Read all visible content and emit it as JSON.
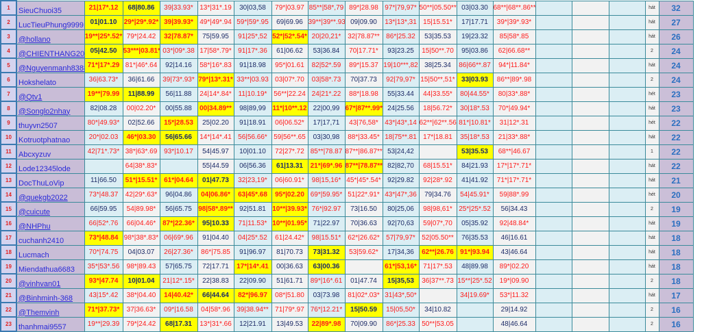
{
  "colors": {
    "highlight": "#ffff00",
    "starred_text": "#ff1a1a",
    "normal_text": "#1c2a66",
    "name_text": "#2a2ad8",
    "score_text": "#2a6fc0"
  },
  "rows": [
    {
      "rank": "1",
      "name": "SieuChuoi35",
      "link": false,
      "cells": [
        "21|17*.12",
        "68|80.86",
        "39|33.93*",
        "13*|31*.19",
        "30|03,58",
        "79*|03.97",
        "85**|58*,79",
        "89*|28.98",
        "97*|79,97*",
        "50**|05.50**",
        "03|03.30",
        "68**|68**.86**"
      ],
      "highlight": [
        0,
        1
      ],
      "status": "hát",
      "score": "32"
    },
    {
      "rank": "2",
      "name": "LucTieuPhung9999",
      "link": false,
      "cells": [
        "01|01.10",
        "29*|29*.92*",
        "39|39.93*",
        "49*|49*.94",
        "59*|59*.95",
        "69|69.96",
        "39**|39**.93",
        "09|09.90",
        "13*|13*,31",
        "15|15.51*",
        "17|17.71",
        "39*|39*.93*"
      ],
      "highlight": [
        0,
        1,
        2
      ],
      "status": "hát",
      "score": "27"
    },
    {
      "rank": "3",
      "name": "@hollano",
      "link": true,
      "cells": [
        "19**|25*.52*",
        "79*|24.42",
        "32|78.87*",
        "75|59.95",
        "91|25*,52",
        "52*|52*.54*",
        "20|20,21*",
        "32|78.87**",
        "86*|25.32",
        "53|35.53",
        "19|23.32",
        "85|58*.85"
      ],
      "highlight": [
        0,
        2,
        5
      ],
      "status": "hát",
      "score": "26"
    },
    {
      "rank": "4",
      "name": "@CHIENTHANG2021",
      "link": true,
      "cells": [
        "05|42.50",
        "53***|03.81*",
        "03*|09*.38",
        "17|58*.79*",
        "91|17*.36",
        "61|06.62",
        "53|36.84",
        "70|17.71*",
        "93|23.25",
        "15|50**.70",
        "95|03.86",
        "62|66.68**"
      ],
      "highlight": [
        0,
        1
      ],
      "status": "2",
      "score": "24"
    },
    {
      "rank": "5",
      "name": "@Nguyenmanh8388",
      "link": true,
      "cells": [
        "71*|17*.29",
        "81*|46*.64",
        "92|14.16",
        "58*|16*.83",
        "91|18.98",
        "95*|01.61",
        "82|52*.59",
        "89*|15.37",
        "19|10***,82",
        "38|25.34",
        "86|66**.87",
        "94*|11.84*"
      ],
      "highlight": [
        0
      ],
      "status": "hát",
      "score": "24"
    },
    {
      "rank": "6",
      "name": "Hokshelato",
      "link": false,
      "cells": [
        "36|63.73*",
        "36|61.66",
        "39|73*.93*",
        "79*|13*.31*",
        "33**|03.93",
        "03|07*.70",
        "03|58*.73",
        "70|37.73",
        "92|79,97*",
        "15|50**,51*",
        "33|03.93",
        "86**|89*.98"
      ],
      "highlight": [
        3,
        10
      ],
      "status": "2",
      "score": "24"
    },
    {
      "rank": "7",
      "name": "@Qtv1",
      "link": true,
      "cells": [
        "19**|79.99",
        "11|88.99",
        "56|11.88",
        "24|14*.84*",
        "11|10.19*",
        "56**|22.24",
        "24|21*.22",
        "88*|18.98",
        "55|33.44",
        "44|33.55*",
        "80|44.55*",
        "80|33*.88*"
      ],
      "highlight": [
        0,
        1
      ],
      "status": "hét",
      "score": "23"
    },
    {
      "rank": "8",
      "name": "@Songlo2nhay",
      "link": true,
      "cells": [
        "82|08.28",
        "00|02.20*",
        "00|55.88",
        "00|34.89**",
        "98|89,99",
        "11*|10**.12",
        "22|00,99",
        "67*|87**.99*",
        "24|25.56",
        "18|56.72*",
        "30|18*.53",
        "70*|49.94*"
      ],
      "highlight": [
        3,
        5,
        7
      ],
      "status": "hát",
      "score": "23"
    },
    {
      "rank": "9",
      "name": "thuyvn2507",
      "link": false,
      "cells": [
        "80*|49.93*",
        "02|52.66",
        "15*|28.53",
        "25|02.20",
        "91|18.91",
        "06|06.52*",
        "17|17,71",
        "43|76,58*",
        "43*|43*,14",
        "62**|62**.56",
        "81*|10.81*",
        "31|12*.31"
      ],
      "highlight": [
        2
      ],
      "status": "hét",
      "score": "22"
    },
    {
      "rank": "10",
      "name": "Kotruotphatnao",
      "link": false,
      "cells": [
        "20*|02.03",
        "46*|03.30",
        "56|65.66",
        "14*|14*.41",
        "56|56.66*",
        "59|56**.65",
        "03|30,98",
        "88*|33.45*",
        "18|75**.81",
        "17*|18.81",
        "35|18*.53",
        "21|33*.88*"
      ],
      "highlight": [
        1,
        2
      ],
      "status": "hát",
      "score": "22"
    },
    {
      "rank": "11",
      "name": "Abcxyzuv",
      "link": false,
      "cells": [
        "42|71*.73*",
        "38*|63*.69",
        "93*|10.17",
        "54|45.97",
        "10|01.10",
        "72|27*.72",
        "85**|78.87",
        "87**|86.87**",
        "53|24,42",
        "",
        "53|35.53",
        "68**|46.67"
      ],
      "highlight": [
        10
      ],
      "status": "1",
      "score": "22"
    },
    {
      "rank": "12",
      "name": "Lode12345lode",
      "link": false,
      "cells": [
        "",
        "64|38*.83*",
        "",
        "55|44.59",
        "06|56.36",
        "61|13.31",
        "21*|69*.96",
        "87**|78.87**",
        "82|82,70",
        "68|15.51*",
        "84|21.93",
        "17*|17*.71*"
      ],
      "highlight": [
        5,
        6,
        7
      ],
      "status": "hát",
      "score": "22"
    },
    {
      "rank": "13",
      "name": "DocThuLoVip",
      "link": false,
      "cells": [
        "11|66.50",
        "51*|15.51*",
        "61*|04.64",
        "01|47.73",
        "32|23,19*",
        "06|60.91*",
        "98|15,16*",
        "45*|45*.54*",
        "92|29.82",
        "92|28*.92",
        "41|41.92",
        "71*|17*.71*"
      ],
      "highlight": [
        1,
        2,
        3
      ],
      "status": "hát",
      "score": "21"
    },
    {
      "rank": "14",
      "name": "@quekgb2022",
      "link": true,
      "cells": [
        "73*|48.37",
        "42|29*.63*",
        "96|04.86",
        "04|06.86*",
        "63|45*.68",
        "95*|02.20",
        "69*|59.95*",
        "51|22*.91*",
        "43*|47*,36",
        "79|34.76",
        "54|45.91*",
        "59|88*.99"
      ],
      "highlight": [
        3,
        4,
        5
      ],
      "status": "hét",
      "score": "20"
    },
    {
      "rank": "15",
      "name": "@cuicute",
      "link": true,
      "cells": [
        "66|59.95",
        "54|89.98*",
        "56|65.75",
        "98|58*.89**",
        "92|51.81",
        "10**|39.93*",
        "76*|92.97",
        "73|16.50",
        "80|25,06",
        "98|98,61*",
        "25*|25*.52",
        "56|34.43"
      ],
      "highlight": [
        3,
        5
      ],
      "status": "2",
      "score": "19"
    },
    {
      "rank": "16",
      "name": "@NHPhu",
      "link": true,
      "cells": [
        "66|52*.76",
        "66|04.46*",
        "87*|22.36*",
        "95|10.33",
        "71|11.53*",
        "10**|01.95*",
        "71|22.97",
        "70|36.63",
        "92|70,63",
        "59|07*,70",
        "05|35.92",
        "92|48.84*"
      ],
      "highlight": [
        2,
        3,
        5
      ],
      "status": "hát",
      "score": "19"
    },
    {
      "rank": "17",
      "name": "cuchanh2410",
      "link": false,
      "cells": [
        "73*|48.84",
        "98*|38*.83*",
        "06|69*.96",
        "91|04.40",
        "04|25*.52",
        "61|24.42*",
        "98|15.51*",
        "62*|26.62*",
        "57|79,97*",
        "52|05.50**",
        "76|35.53",
        "46|16.61"
      ],
      "highlight": [
        0
      ],
      "status": "hát",
      "score": "18"
    },
    {
      "rank": "18",
      "name": "Lucmach",
      "link": false,
      "cells": [
        "70*|74.75",
        "04|03.07",
        "26|27.36*",
        "86*|75.85",
        "91|96.97",
        "81|70.73",
        "73|31.32",
        "53|59.62*",
        "17|34,36",
        "62**|26.76",
        "91*|93.94",
        "43|46.64"
      ],
      "highlight": [
        6,
        9,
        10
      ],
      "status": "hát",
      "score": "18"
    },
    {
      "rank": "19",
      "name": "Miendathua6683",
      "link": false,
      "cells": [
        "35*|53*.56",
        "98*|89.43",
        "57|65.75",
        "72|17.71",
        "17*|14*.41",
        "00|36.63",
        "63|00.36",
        "",
        "61*|53,16*",
        "71|17*.53",
        "48|89.98",
        "89*|02.20"
      ],
      "highlight": [
        4,
        6,
        8
      ],
      "status": "hát",
      "score": "18"
    },
    {
      "rank": "20",
      "name": "@vinhvan01",
      "link": true,
      "cells": [
        "93*|47.74",
        "10|01.04",
        "21|12*.15*",
        "22|38.83",
        "22|09.90",
        "51|61.71",
        "89*|16*.61",
        "01|47.74",
        "15|35,53",
        "36|37**.73",
        "15**|25*.52",
        "19*|09.90"
      ],
      "highlight": [
        0,
        1,
        8
      ],
      "status": "2",
      "score": "18"
    },
    {
      "rank": "21",
      "name": "@Binhminh-368",
      "link": true,
      "cells": [
        "43|15*.42",
        "38*|04.40",
        "14|40.42*",
        "66|44.64",
        "82*|96.97",
        "08*|51.80",
        "03|73.98",
        "81|02*.03*",
        "31|43*,50*",
        "",
        "34|19.69*",
        "53*|11.32"
      ],
      "highlight": [
        2,
        3,
        4
      ],
      "status": "hát",
      "score": "17"
    },
    {
      "rank": "22",
      "name": "@Themvinh",
      "link": true,
      "cells": [
        "71*|37.73*",
        "37|36.63*",
        "09*|16.58",
        "04|58*.96",
        "39|38.94**",
        "71|79*.97",
        "76*|12.21*",
        "15|50.59",
        "15|05,50*",
        "34|10.82",
        "",
        "29|14.92"
      ],
      "highlight": [
        0,
        7
      ],
      "status": "2",
      "score": "16"
    },
    {
      "rank": "23",
      "name": "thanhmai9557",
      "link": false,
      "cells": [
        "19**|29.39",
        "79*|24.42",
        "68|17.31",
        "13*|31*.66",
        "12|21.91",
        "13|49.53",
        "22|89*.98",
        "70|09.90",
        "86*|25.33",
        "50**|53.05",
        "",
        "48|46.64"
      ],
      "highlight": [
        2,
        6
      ],
      "status": "2",
      "score": "16"
    }
  ]
}
